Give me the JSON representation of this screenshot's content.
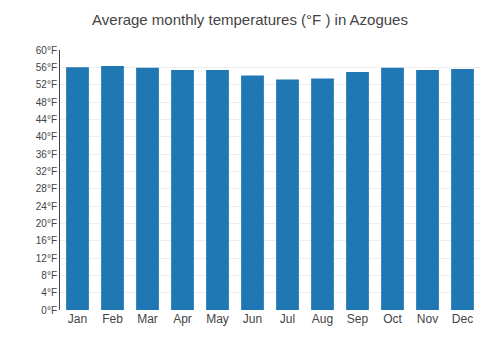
{
  "chart_data": {
    "type": "bar",
    "title": "Average monthly temperatures (°F ) in Azogues",
    "categories": [
      "Jan",
      "Feb",
      "Mar",
      "Apr",
      "May",
      "Jun",
      "Jul",
      "Aug",
      "Sep",
      "Oct",
      "Nov",
      "Dec"
    ],
    "values": [
      56.0,
      56.3,
      55.9,
      55.4,
      55.4,
      54.1,
      53.2,
      53.4,
      54.9,
      55.9,
      55.4,
      55.6
    ],
    "ylim": [
      0,
      60
    ],
    "yticks": [
      {
        "value": 0,
        "label": "0°F"
      },
      {
        "value": 4,
        "label": "4°F"
      },
      {
        "value": 8,
        "label": "8°F"
      },
      {
        "value": 12,
        "label": "12°F"
      },
      {
        "value": 16,
        "label": "16°F"
      },
      {
        "value": 20,
        "label": "20°F"
      },
      {
        "value": 24,
        "label": "24°F"
      },
      {
        "value": 28,
        "label": "28°F"
      },
      {
        "value": 32,
        "label": "32°F"
      },
      {
        "value": 36,
        "label": "36°F"
      },
      {
        "value": 40,
        "label": "40°F"
      },
      {
        "value": 44,
        "label": "44°F"
      },
      {
        "value": 48,
        "label": "48°F"
      },
      {
        "value": 52,
        "label": "52°F"
      },
      {
        "value": 56,
        "label": "56°F"
      },
      {
        "value": 60,
        "label": "60°F"
      }
    ],
    "grid": true
  }
}
